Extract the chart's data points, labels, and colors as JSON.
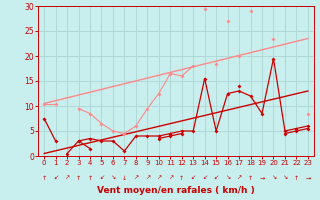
{
  "bg_color": "#c8eeee",
  "grid_color": "#b0d8d8",
  "line_color_dark": "#cc0000",
  "line_color_light": "#ff8888",
  "xlabel": "Vent moyen/en rafales ( km/h )",
  "xlabel_color": "#cc0000",
  "tick_color": "#cc0000",
  "xlim": [
    -0.5,
    23.5
  ],
  "ylim": [
    0,
    30
  ],
  "xticks": [
    0,
    1,
    2,
    3,
    4,
    5,
    6,
    7,
    8,
    9,
    10,
    11,
    12,
    13,
    14,
    15,
    16,
    17,
    18,
    19,
    20,
    21,
    22,
    23
  ],
  "yticks": [
    0,
    5,
    10,
    15,
    20,
    25,
    30
  ],
  "arrows": [
    "↑",
    "↙",
    "↗",
    "↑",
    "↑",
    "↙",
    "↘",
    "↓",
    "↗",
    "↗",
    "↗",
    "↗",
    "↑",
    "↙",
    "↙",
    "↙",
    "↘",
    "↗",
    "↑",
    "→",
    "↘",
    "↘",
    "↑",
    "→"
  ],
  "series_dark": [
    [
      7.5,
      3.0,
      null,
      3.0,
      3.5,
      3.0,
      3.0,
      1.0,
      4.0,
      4.0,
      4.0,
      4.5,
      5.0,
      5.0,
      15.5,
      5.0,
      12.5,
      13.0,
      12.0,
      8.5,
      19.5,
      5.0,
      5.5,
      6.0
    ],
    [
      null,
      null,
      0.5,
      3.0,
      1.5,
      null,
      null,
      null,
      null,
      null,
      null,
      null,
      null,
      null,
      null,
      null,
      null,
      null,
      null,
      null,
      null,
      null,
      null,
      null
    ],
    [
      null,
      null,
      null,
      null,
      null,
      null,
      null,
      null,
      null,
      null,
      3.5,
      4.0,
      4.5,
      null,
      null,
      null,
      null,
      14.0,
      null,
      null,
      null,
      null,
      null,
      null
    ],
    [
      null,
      null,
      null,
      null,
      null,
      null,
      null,
      null,
      null,
      null,
      null,
      null,
      null,
      null,
      null,
      null,
      null,
      null,
      null,
      null,
      null,
      4.5,
      5.0,
      5.5
    ]
  ],
  "series_light": [
    [
      10.5,
      10.5,
      null,
      9.5,
      8.5,
      6.5,
      5.0,
      4.5,
      6.0,
      9.5,
      12.5,
      16.5,
      16.0,
      18.0,
      null,
      18.5,
      null,
      20.0,
      null,
      null,
      null,
      null,
      null,
      8.5
    ],
    [
      null,
      null,
      null,
      null,
      null,
      null,
      null,
      null,
      null,
      null,
      null,
      null,
      null,
      null,
      29.5,
      null,
      27.0,
      null,
      29.0,
      null,
      null,
      null,
      null,
      null
    ],
    [
      null,
      null,
      null,
      null,
      null,
      null,
      null,
      null,
      null,
      null,
      null,
      null,
      null,
      null,
      null,
      null,
      null,
      null,
      null,
      null,
      23.5,
      null,
      null,
      null
    ]
  ],
  "regression_dark": [
    0,
    0.5,
    23,
    13.0
  ],
  "regression_light": [
    0,
    10.5,
    23,
    23.5
  ]
}
